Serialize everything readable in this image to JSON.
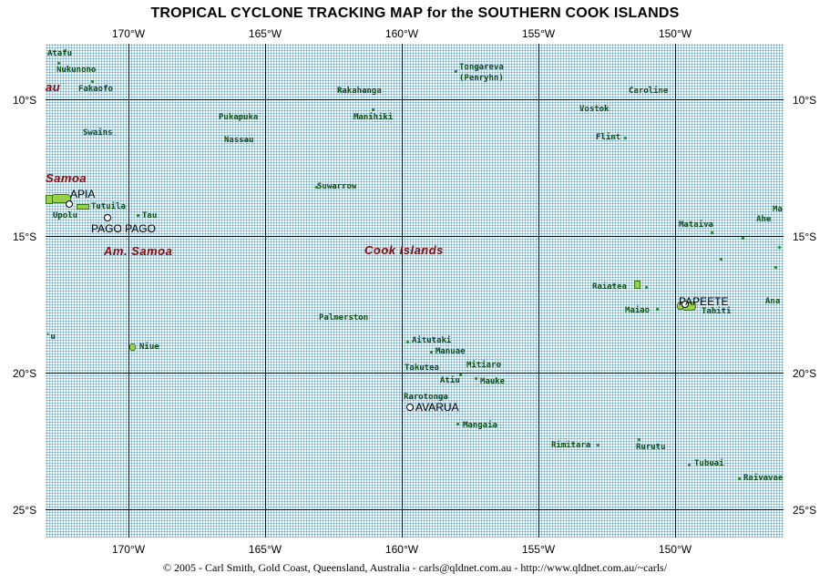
{
  "title": "TROPICAL CYCLONE TRACKING MAP for the SOUTHERN COOK ISLANDS",
  "footer": "© 2005 - Carl Smith, Gold Coast, Queensland, Australia  -  carls@qldnet.com.au  -  http://www.qldnet.com.au/~carls/",
  "longitudes": [
    "170°W",
    "165°W",
    "160°W",
    "155°W",
    "150°W"
  ],
  "latitudes": [
    "10°S",
    "15°S",
    "20°S",
    "25°S"
  ],
  "regions": {
    "au_fragment": "au",
    "samoa": "Samoa",
    "am_samoa": "Am. Samoa",
    "cook_islands": "Cook Islands"
  },
  "capitals": {
    "apia": "APIA",
    "pago_pago": "PAGO PAGO",
    "avarua": "AVARUA",
    "papeete": "PAPEETE"
  },
  "islands": {
    "atafu": "Atafu",
    "nukunono": "Nukunono",
    "fakaofo": "Fakaofo",
    "swains": "Swains",
    "upolu": "Upolu",
    "tutuila": "Tutuila",
    "tau": "Tau",
    "niue": "Niue",
    "pukapuka": "Pukapuka",
    "nassau": "Nassau",
    "rakahanga": "Rakahanga",
    "manihiki": "Manihiki",
    "suwarrow": "Suwarrow",
    "palmerston": "Palmerston",
    "tongareva": "Tongareva",
    "penryhn": "(Penryhn)",
    "aitutaki": "Aitutaki",
    "manuae": "Manuae",
    "takutea": "Takutea",
    "mitiaro": "Mitiaro",
    "atiu": "Atiu",
    "mauke": "Mauke",
    "rarotonga": "Rarotonga",
    "mangaia": "Mangaia",
    "caroline": "Caroline",
    "vostok": "Vostok",
    "flint": "Flint",
    "mataiva": "Mataiva",
    "ahe": "Ahe",
    "ma_fragment": "Ma",
    "raiatea": "Raiatea",
    "maiao": "Maiao",
    "tahiti": "Tahiti",
    "ana_fragment": "Ana",
    "rimitara": "Rimitara",
    "rurutu": "Rurutu",
    "tubuai": "Tubuai",
    "raivavae": "Raivavae",
    "u_fragment": "'u"
  }
}
